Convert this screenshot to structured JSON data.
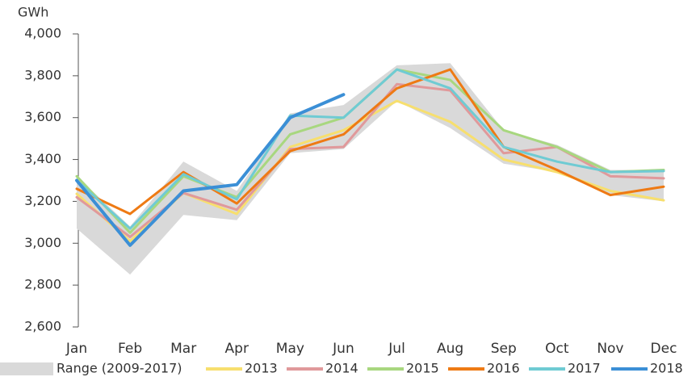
{
  "chart_data": {
    "type": "line",
    "y_axis_label": "GWh",
    "categories": [
      "Jan",
      "Feb",
      "Mar",
      "Apr",
      "May",
      "Jun",
      "Jul",
      "Aug",
      "Sep",
      "Oct",
      "Nov",
      "Dec"
    ],
    "ylim": [
      2600,
      4000
    ],
    "yticks": [
      {
        "value": 2600,
        "label": "2,600"
      },
      {
        "value": 2800,
        "label": "2,800"
      },
      {
        "value": 3000,
        "label": "3,000"
      },
      {
        "value": 3200,
        "label": "3,200"
      },
      {
        "value": 3400,
        "label": "3,400"
      },
      {
        "value": 3600,
        "label": "3,600"
      },
      {
        "value": 3800,
        "label": "3,800"
      },
      {
        "value": 4000,
        "label": "4,000"
      }
    ],
    "grid": false,
    "legend": "bottom",
    "range": {
      "name": "Range (2009-2017)",
      "color": "#d9d9d9",
      "upper": [
        3320,
        3080,
        3390,
        3250,
        3620,
        3660,
        3850,
        3860,
        3540,
        3470,
        3350,
        3350
      ],
      "lower": [
        3070,
        2850,
        3135,
        3110,
        3430,
        3450,
        3680,
        3550,
        3380,
        3340,
        3230,
        3200
      ]
    },
    "series": [
      {
        "name": "2013",
        "color": "#f7df6e",
        "values": [
          3236,
          3010,
          3240,
          3140,
          3460,
          3540,
          3680,
          3580,
          3400,
          3340,
          3250,
          3205
        ]
      },
      {
        "name": "2014",
        "color": "#e0999b",
        "values": [
          3220,
          3030,
          3240,
          3160,
          3450,
          3460,
          3760,
          3730,
          3430,
          3460,
          3320,
          3310
        ]
      },
      {
        "name": "2015",
        "color": "#a8d77f",
        "values": [
          3320,
          3050,
          3320,
          3220,
          3520,
          3600,
          3830,
          3780,
          3540,
          3460,
          3340,
          3350
        ]
      },
      {
        "name": "2016",
        "color": "#ee7a14",
        "values": [
          3260,
          3140,
          3340,
          3190,
          3440,
          3520,
          3740,
          3830,
          3460,
          3350,
          3230,
          3270
        ]
      },
      {
        "name": "2017",
        "color": "#6fcbd3",
        "values": [
          3300,
          3070,
          3330,
          3210,
          3610,
          3600,
          3830,
          3740,
          3460,
          3390,
          3340,
          3345
        ]
      },
      {
        "name": "2018",
        "color": "#3b8fd6",
        "values": [
          3300,
          2990,
          3250,
          3280,
          3600,
          3710,
          null,
          null,
          null,
          null,
          null,
          null
        ]
      }
    ]
  }
}
